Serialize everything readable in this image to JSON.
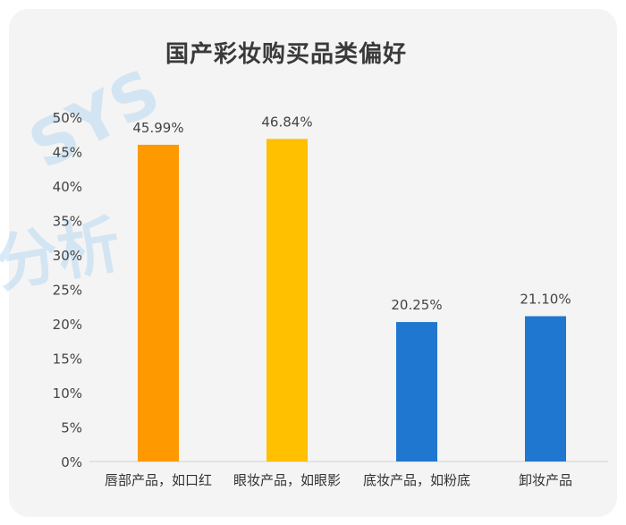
{
  "chart_data": {
    "type": "bar",
    "title": "国产彩妆购买品类偏好",
    "categories": [
      "唇部产品，如口红",
      "眼妆产品，如眼影",
      "底妆产品，如粉底",
      "卸妆产品"
    ],
    "values": [
      45.99,
      46.84,
      20.25,
      21.1
    ],
    "data_labels": [
      "45.99%",
      "46.84%",
      "20.25%",
      "21.10%"
    ],
    "bar_colors": [
      "#FF9900",
      "#FFC000",
      "#1F77D0",
      "#1F77D0"
    ],
    "ylim": [
      0,
      50
    ],
    "yticks": [
      "0%",
      "5%",
      "10%",
      "15%",
      "20%",
      "25%",
      "30%",
      "35%",
      "40%",
      "45%",
      "50%"
    ],
    "grid": false,
    "legend": "none"
  },
  "watermark": {
    "text_a": "SYS",
    "text_b": "分析"
  }
}
